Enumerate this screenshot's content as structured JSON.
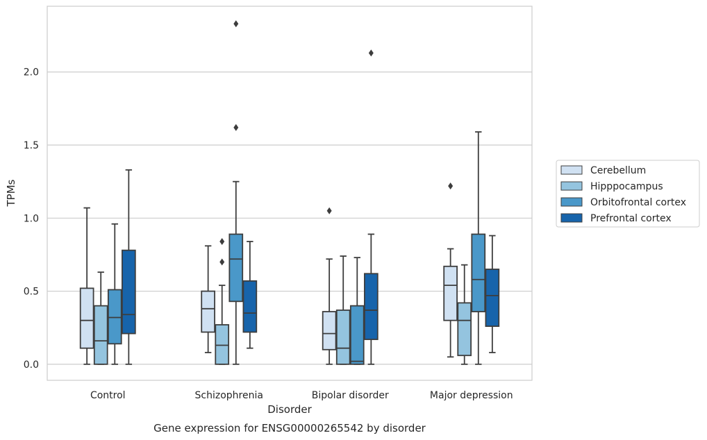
{
  "chart_data": {
    "type": "box",
    "title": "Gene expression for ENSG00000265542 by disorder",
    "xlabel": "Disorder",
    "ylabel": "TPMs",
    "ylim": [
      -0.11,
      2.45
    ],
    "yticks": [
      "0.0",
      "0.5",
      "1.0",
      "1.5",
      "2.0"
    ],
    "grid": "horizontal",
    "legend_position": "right",
    "categories": [
      "Control",
      "Schizophrenia",
      "Bipolar disorder",
      "Major depression"
    ],
    "series": [
      {
        "name": "Cerebellum",
        "color": "#d0e1f2",
        "boxes": [
          {
            "whisker_low": 0.0,
            "q1": 0.11,
            "median": 0.3,
            "q3": 0.52,
            "whisker_high": 1.07,
            "outliers": []
          },
          {
            "whisker_low": 0.08,
            "q1": 0.22,
            "median": 0.38,
            "q3": 0.5,
            "whisker_high": 0.81,
            "outliers": []
          },
          {
            "whisker_low": 0.0,
            "q1": 0.1,
            "median": 0.21,
            "q3": 0.36,
            "whisker_high": 0.72,
            "outliers": [
              1.05
            ]
          },
          {
            "whisker_low": 0.05,
            "q1": 0.3,
            "median": 0.54,
            "q3": 0.67,
            "whisker_high": 0.79,
            "outliers": [
              1.22
            ]
          }
        ]
      },
      {
        "name": "Hipppocampus",
        "color": "#94c4df",
        "boxes": [
          {
            "whisker_low": 0.0,
            "q1": 0.0,
            "median": 0.16,
            "q3": 0.4,
            "whisker_high": 0.63,
            "outliers": []
          },
          {
            "whisker_low": 0.0,
            "q1": 0.0,
            "median": 0.13,
            "q3": 0.27,
            "whisker_high": 0.54,
            "outliers": [
              0.7,
              0.84
            ]
          },
          {
            "whisker_low": 0.0,
            "q1": 0.0,
            "median": 0.11,
            "q3": 0.37,
            "whisker_high": 0.74,
            "outliers": []
          },
          {
            "whisker_low": 0.0,
            "q1": 0.06,
            "median": 0.3,
            "q3": 0.42,
            "whisker_high": 0.68,
            "outliers": []
          }
        ]
      },
      {
        "name": "Orbitofrontal cortex",
        "color": "#4a98c9",
        "boxes": [
          {
            "whisker_low": 0.0,
            "q1": 0.14,
            "median": 0.32,
            "q3": 0.51,
            "whisker_high": 0.96,
            "outliers": []
          },
          {
            "whisker_low": 0.0,
            "q1": 0.43,
            "median": 0.72,
            "q3": 0.89,
            "whisker_high": 1.25,
            "outliers": [
              1.62,
              2.33
            ]
          },
          {
            "whisker_low": 0.0,
            "q1": 0.0,
            "median": 0.02,
            "q3": 0.4,
            "whisker_high": 0.73,
            "outliers": []
          },
          {
            "whisker_low": 0.0,
            "q1": 0.36,
            "median": 0.58,
            "q3": 0.89,
            "whisker_high": 1.59,
            "outliers": []
          }
        ]
      },
      {
        "name": "Prefrontal cortex",
        "color": "#1764ab",
        "boxes": [
          {
            "whisker_low": 0.0,
            "q1": 0.21,
            "median": 0.34,
            "q3": 0.78,
            "whisker_high": 1.33,
            "outliers": []
          },
          {
            "whisker_low": 0.11,
            "q1": 0.22,
            "median": 0.35,
            "q3": 0.57,
            "whisker_high": 0.84,
            "outliers": []
          },
          {
            "whisker_low": 0.0,
            "q1": 0.17,
            "median": 0.37,
            "q3": 0.62,
            "whisker_high": 0.89,
            "outliers": [
              2.13
            ]
          },
          {
            "whisker_low": 0.08,
            "q1": 0.26,
            "median": 0.47,
            "q3": 0.65,
            "whisker_high": 0.88,
            "outliers": []
          }
        ]
      }
    ]
  }
}
